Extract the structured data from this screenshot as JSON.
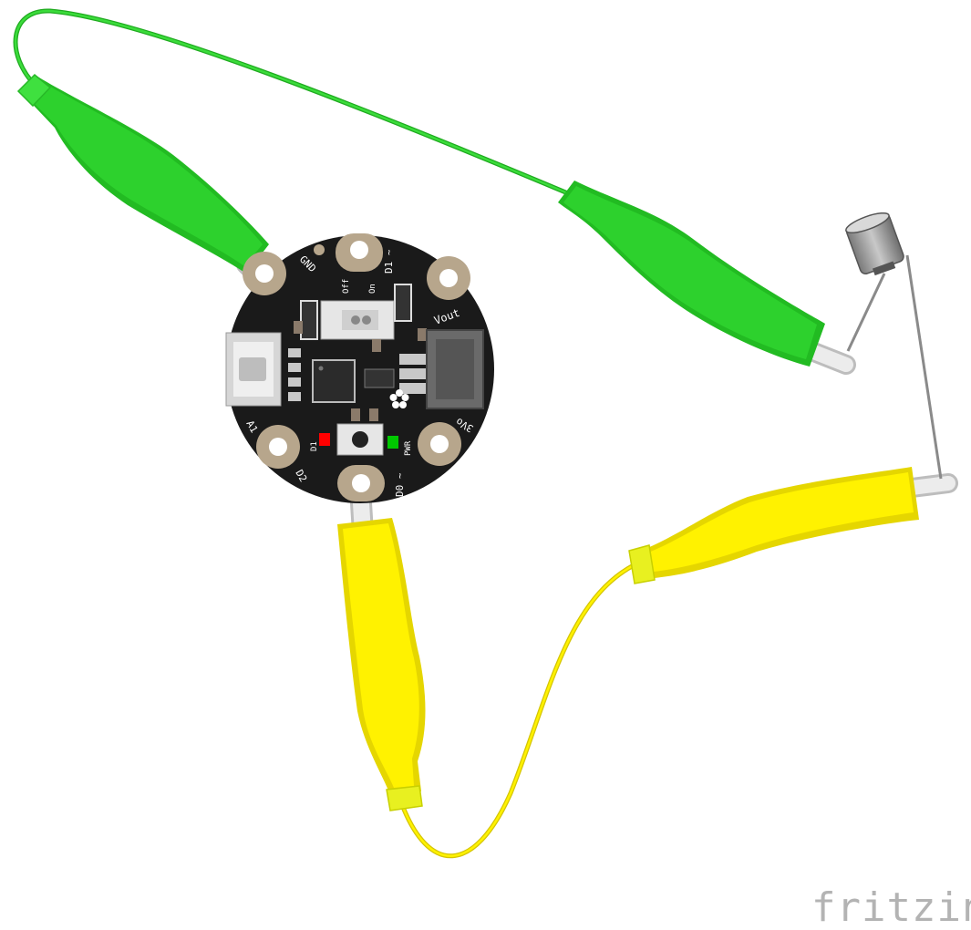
{
  "board": {
    "pins": {
      "gnd": "GND",
      "d1": "D1 ~",
      "vout": "Vout",
      "threevo": "3Vo",
      "d0": "D0 ~",
      "d2": "D2",
      "a1": "A1"
    },
    "switch": {
      "off": "Off",
      "on": "On"
    },
    "led_labels": {
      "d1": "D1",
      "pwr": "PWR"
    },
    "colors": {
      "pcb": "#1a1a1a",
      "pad": "#b7a68c",
      "led_d1": "#ff0000",
      "led_pwr": "#00c800"
    }
  },
  "wires": {
    "green": {
      "color": "#2ecc2e",
      "clip_color": "#27c832"
    },
    "yellow": {
      "color": "#f5e400",
      "clip_color": "#fff200"
    }
  },
  "component": {
    "icon": "vibration-motor-icon"
  },
  "brand": {
    "label": "fritzing"
  }
}
